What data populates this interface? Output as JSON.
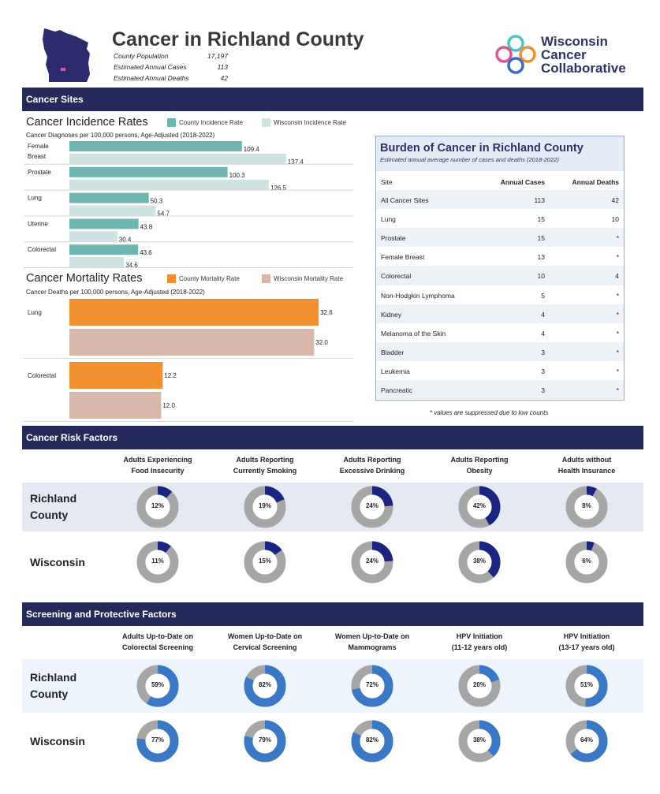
{
  "header": {
    "title": "Cancer in Richland County",
    "stats": [
      {
        "label": "County Population",
        "value": "17,197"
      },
      {
        "label": "Estimated Annual Cases",
        "value": "113"
      },
      {
        "label": "Estimated Annual Deaths",
        "value": "42"
      }
    ],
    "logo_lines": [
      "Wisconsin",
      "Cancer",
      "Collaborative"
    ]
  },
  "sections": {
    "sites": "Cancer Sites",
    "risk": "Cancer Risk Factors",
    "screening": "Screening and Protective Factors"
  },
  "colors": {
    "navy": "#262a5a",
    "county_incidence": "#6fb5b1",
    "state_incidence": "#cfe4e2",
    "county_mortality": "#f0902f",
    "state_mortality": "#d7b7aa",
    "risk_fill": "#1b2480",
    "screen_fill": "#3a78c6",
    "donut_bg": "#a6a6a6"
  },
  "chart_data": [
    {
      "type": "bar",
      "orientation": "horizontal",
      "title": "Cancer Incidence Rates",
      "subtitle": "Cancer Diagnoses per 100,000 persons, Age-Adjusted (2018-2022)",
      "categories": [
        "Female Breast",
        "Prostate",
        "Lung",
        "Uterine",
        "Colorectal"
      ],
      "category_lines": [
        [
          "Female",
          "Breast"
        ],
        [
          "Prostate"
        ],
        [
          "Lung"
        ],
        [
          "Uterine"
        ],
        [
          "Colorectal"
        ]
      ],
      "series": [
        {
          "name": "County Incidence Rate",
          "values": [
            109.4,
            100.3,
            50.3,
            43.8,
            43.6
          ]
        },
        {
          "name": "Wisconsin Incidence Rate",
          "values": [
            137.4,
            126.5,
            54.7,
            30.4,
            34.6
          ]
        }
      ],
      "xlim": [
        0,
        160
      ]
    },
    {
      "type": "bar",
      "orientation": "horizontal",
      "title": "Cancer Mortality Rates",
      "subtitle": "Cancer Deaths per 100,000 persons, Age-Adjusted (2018-2022)",
      "categories": [
        "Lung",
        "Colorectal"
      ],
      "category_lines": [
        [
          "Lung"
        ],
        [
          "Colorectal"
        ]
      ],
      "series": [
        {
          "name": "County Mortality Rate",
          "values": [
            32.6,
            12.2
          ]
        },
        {
          "name": "Wisconsin Mortality Rate",
          "values": [
            32.0,
            12.0
          ]
        }
      ],
      "xlim": [
        0,
        33
      ]
    },
    {
      "type": "table",
      "title": "Burden of Cancer in Richland County",
      "subtitle": "Estimated annual average number of cases and deaths (2018-2022)",
      "columns": [
        "Site",
        "Annual Cases",
        "Annual Deaths"
      ],
      "rows": [
        [
          "All Cancer Sites",
          "113",
          "42"
        ],
        [
          "Lung",
          "15",
          "10"
        ],
        [
          "Prostate",
          "15",
          "*"
        ],
        [
          "Female Breast",
          "13",
          "*"
        ],
        [
          "Colorectal",
          "10",
          "4"
        ],
        [
          "Non-Hodgkin Lymphoma",
          "5",
          "*"
        ],
        [
          "Kidney",
          "4",
          "*"
        ],
        [
          "Melanoma of the Skin",
          "4",
          "*"
        ],
        [
          "Bladder",
          "3",
          "*"
        ],
        [
          "Leukemia",
          "3",
          "*"
        ],
        [
          "Pancreatic",
          "3",
          "*"
        ]
      ],
      "footnote": "* values are suppressed due to low counts"
    },
    {
      "type": "donut",
      "title": "Cancer Risk Factors",
      "categories": [
        [
          "Adults Experiencing",
          "Food Insecurity"
        ],
        [
          "Adults Reporting",
          "Currently Smoking"
        ],
        [
          "Adults Reporting",
          "Excessive Drinking"
        ],
        [
          "Adults Reporting",
          "Obesity"
        ],
        [
          "Adults without",
          "Health Insurance"
        ]
      ],
      "series": [
        {
          "name": "Richland County",
          "name_lines": [
            "Richland",
            "County"
          ],
          "values": [
            12,
            19,
            24,
            42,
            8
          ]
        },
        {
          "name": "Wisconsin",
          "name_lines": [
            "Wisconsin"
          ],
          "values": [
            11,
            15,
            24,
            38,
            6
          ]
        }
      ],
      "unit": "%"
    },
    {
      "type": "donut",
      "title": "Screening and Protective Factors",
      "categories": [
        [
          "Adults Up-to-Date on",
          "Colorectal Screening"
        ],
        [
          "Women Up-to-Date on",
          "Cervical Screening"
        ],
        [
          "Women Up-to-Date on",
          "Mammograms"
        ],
        [
          "HPV Initiation",
          "(11-12 years old)"
        ],
        [
          "HPV Initiation",
          "(13-17 years old)"
        ]
      ],
      "series": [
        {
          "name": "Richland County",
          "name_lines": [
            "Richland",
            "County"
          ],
          "values": [
            59,
            82,
            72,
            20,
            51
          ]
        },
        {
          "name": "Wisconsin",
          "name_lines": [
            "Wisconsin"
          ],
          "values": [
            77,
            79,
            82,
            38,
            64
          ]
        }
      ],
      "unit": "%"
    }
  ]
}
